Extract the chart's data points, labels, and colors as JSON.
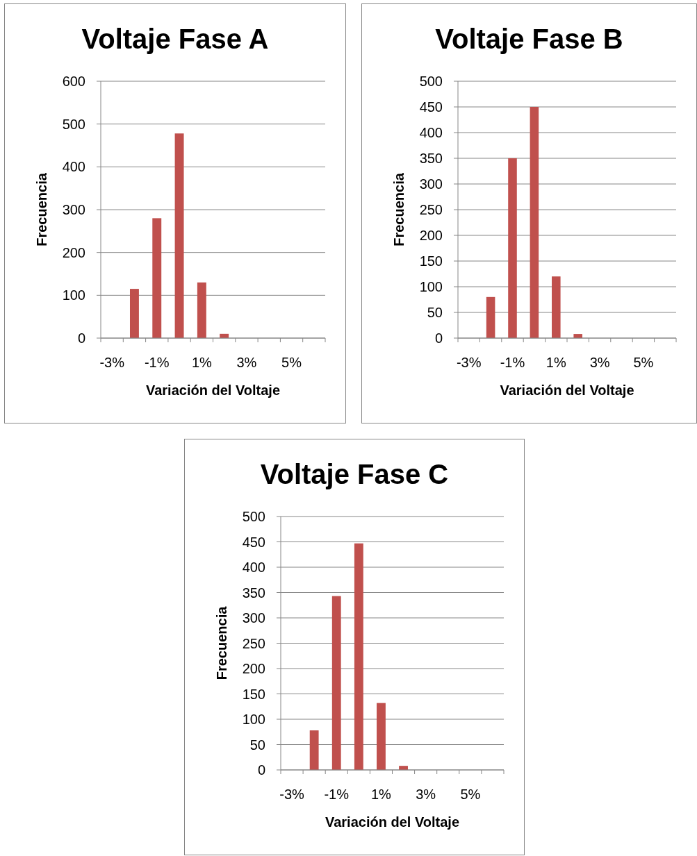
{
  "chart_data": [
    {
      "type": "bar",
      "title": "Voltaje Fase A",
      "xlabel": "Variación del Voltaje",
      "ylabel": "Frecuencia",
      "categories": [
        "-3%",
        null,
        "-1%",
        null,
        "1%",
        null,
        "3%",
        null,
        "5%",
        null
      ],
      "values": [
        0,
        115,
        280,
        478,
        130,
        10,
        0,
        0,
        0,
        0
      ],
      "color": "#c0504d",
      "ylim": [
        0,
        600
      ],
      "yticks": [
        0,
        100,
        200,
        300,
        400,
        500,
        600
      ],
      "grid": "y"
    },
    {
      "type": "bar",
      "title": "Voltaje Fase B",
      "xlabel": "Variación del Voltaje",
      "ylabel": "Frecuencia",
      "categories": [
        "-3%",
        null,
        "-1%",
        null,
        "1%",
        null,
        "3%",
        null,
        "5%",
        null
      ],
      "values": [
        0,
        80,
        350,
        450,
        120,
        8,
        0,
        0,
        0,
        0
      ],
      "color": "#c0504d",
      "ylim": [
        0,
        500
      ],
      "yticks": [
        0,
        50,
        100,
        150,
        200,
        250,
        300,
        350,
        400,
        450,
        500
      ],
      "grid": "y"
    },
    {
      "type": "bar",
      "title": "Voltaje Fase C",
      "xlabel": "Variación del Voltaje",
      "ylabel": "Frecuencia",
      "categories": [
        "-3%",
        null,
        "-1%",
        null,
        "1%",
        null,
        "3%",
        null,
        "5%",
        null
      ],
      "values": [
        0,
        78,
        343,
        447,
        132,
        8,
        0,
        0,
        0,
        0
      ],
      "color": "#c0504d",
      "ylim": [
        0,
        500
      ],
      "yticks": [
        0,
        50,
        100,
        150,
        200,
        250,
        300,
        350,
        400,
        450,
        500
      ],
      "grid": "y"
    }
  ]
}
